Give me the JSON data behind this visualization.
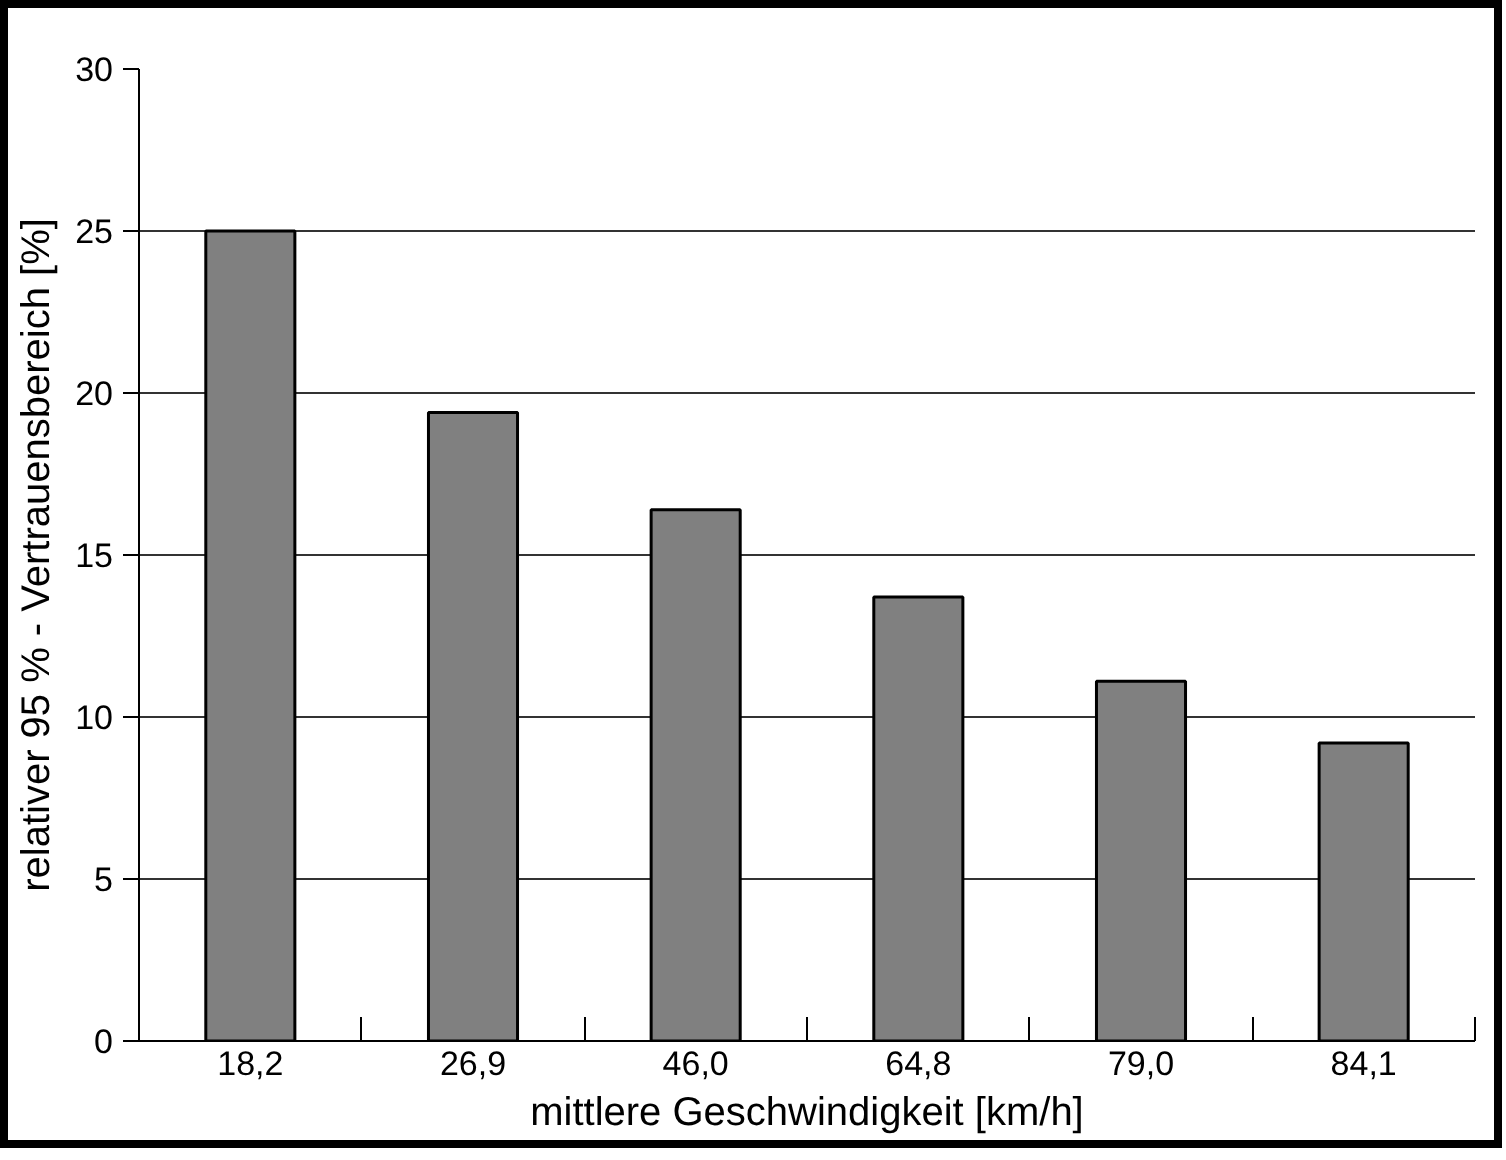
{
  "chart_data": {
    "type": "bar",
    "xlabel": "mittlere Geschwindigkeit [km/h]",
    "ylabel": "relativer 95 % - Vertrauensbereich [%]",
    "categories": [
      "18,2",
      "26,9",
      "46,0",
      "64,8",
      "79,0",
      "84,1"
    ],
    "values": [
      25,
      19.4,
      16.4,
      13.7,
      11.1,
      9.2
    ],
    "color": "#808080",
    "ylim": [
      0,
      30
    ],
    "yticks": [
      0,
      5,
      10,
      15,
      20,
      25,
      30
    ],
    "grid": "y"
  }
}
